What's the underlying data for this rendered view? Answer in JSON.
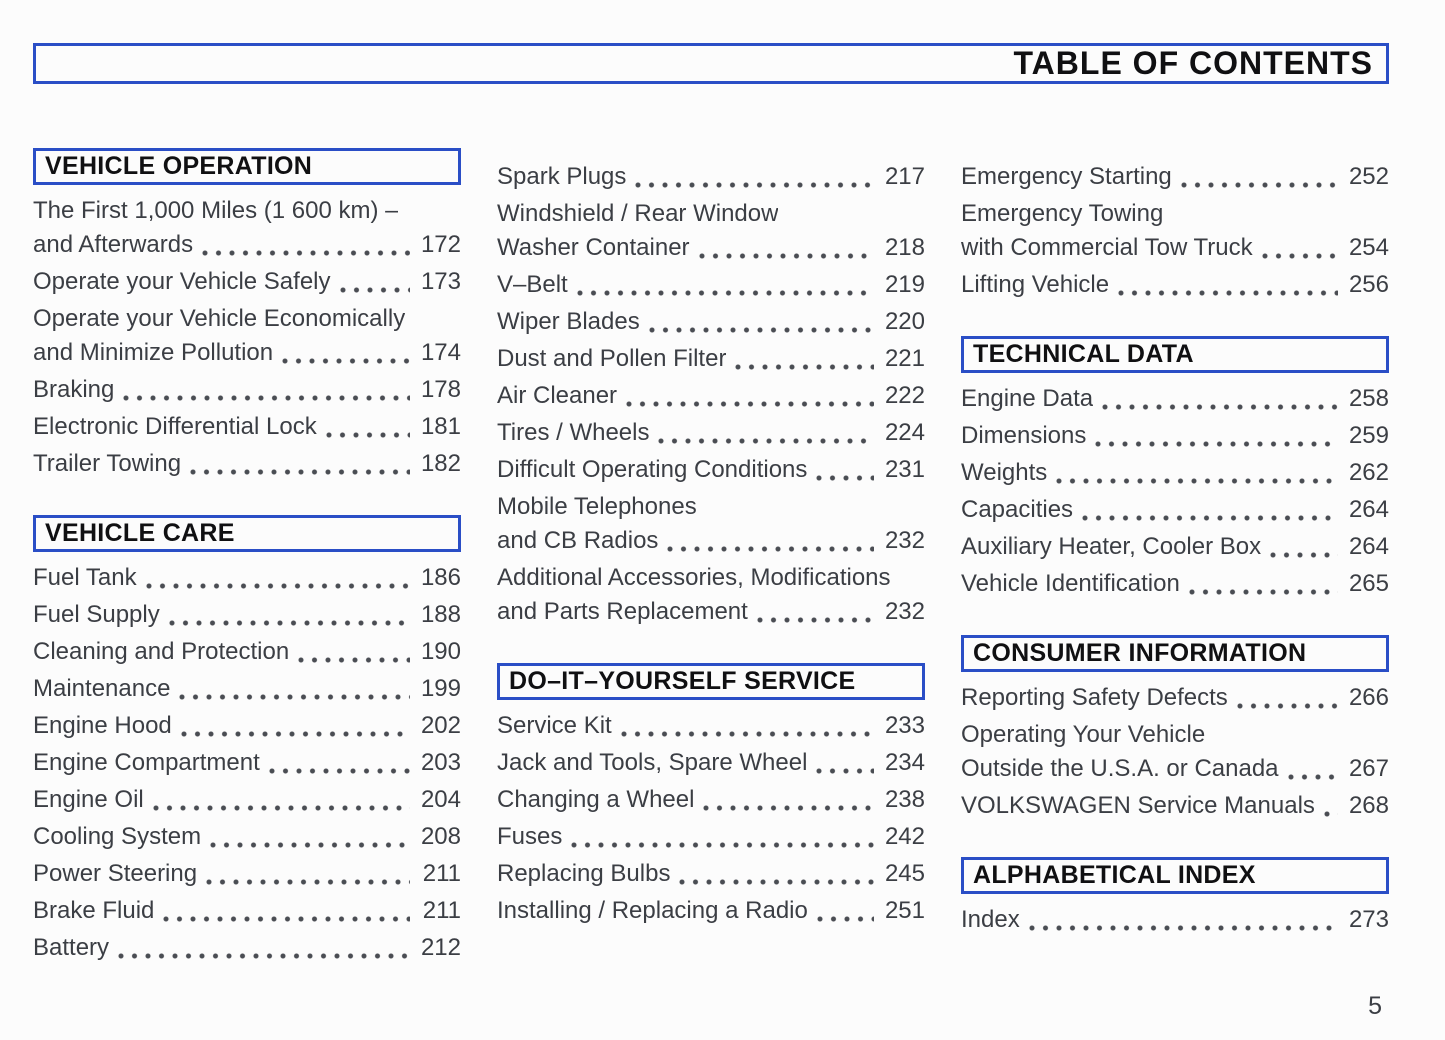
{
  "page": {
    "title": "TABLE OF CONTENTS",
    "number": "5"
  },
  "colors": {
    "box_border_blue": "#2a4ec6",
    "body_text": "#3b3e44",
    "header_text": "#101012"
  },
  "columns": [
    {
      "blocks": [
        {
          "header": "VEHICLE OPERATION",
          "entries": [
            {
              "lines": [
                "The First 1,000 Miles (1 600 km) –",
                "and Afterwards"
              ],
              "page": "172"
            },
            {
              "lines": [
                "Operate your Vehicle Safely"
              ],
              "page": "173"
            },
            {
              "lines": [
                "Operate your Vehicle Economically",
                "and Minimize Pollution"
              ],
              "page": "174"
            },
            {
              "lines": [
                "Braking"
              ],
              "page": "178"
            },
            {
              "lines": [
                "Electronic Differential Lock"
              ],
              "page": "181"
            },
            {
              "lines": [
                "Trailer Towing"
              ],
              "page": "182"
            }
          ]
        },
        {
          "header": "VEHICLE CARE",
          "entries": [
            {
              "lines": [
                "Fuel Tank"
              ],
              "page": "186"
            },
            {
              "lines": [
                "Fuel Supply"
              ],
              "page": "188"
            },
            {
              "lines": [
                "Cleaning and Protection"
              ],
              "page": "190"
            },
            {
              "lines": [
                "Maintenance"
              ],
              "page": "199"
            },
            {
              "lines": [
                "Engine Hood"
              ],
              "page": "202"
            },
            {
              "lines": [
                "Engine Compartment"
              ],
              "page": "203"
            },
            {
              "lines": [
                "Engine Oil"
              ],
              "page": "204"
            },
            {
              "lines": [
                "Cooling System"
              ],
              "page": "208"
            },
            {
              "lines": [
                "Power Steering"
              ],
              "page": "211"
            },
            {
              "lines": [
                "Brake Fluid"
              ],
              "page": "211"
            },
            {
              "lines": [
                "Battery"
              ],
              "page": "212"
            }
          ]
        }
      ]
    },
    {
      "blocks": [
        {
          "header": null,
          "entries": [
            {
              "lines": [
                "Spark Plugs"
              ],
              "page": "217"
            },
            {
              "lines": [
                "Windshield / Rear Window",
                "Washer Container"
              ],
              "page": "218"
            },
            {
              "lines": [
                "V–Belt"
              ],
              "page": "219"
            },
            {
              "lines": [
                "Wiper Blades"
              ],
              "page": "220"
            },
            {
              "lines": [
                "Dust and Pollen Filter"
              ],
              "page": "221"
            },
            {
              "lines": [
                "Air Cleaner"
              ],
              "page": "222"
            },
            {
              "lines": [
                "Tires / Wheels"
              ],
              "page": "224"
            },
            {
              "lines": [
                "Difficult Operating Conditions"
              ],
              "page": "231"
            },
            {
              "lines": [
                "Mobile Telephones",
                "and CB Radios"
              ],
              "page": "232"
            },
            {
              "lines": [
                "Additional Accessories, Modifications",
                "and Parts Replacement"
              ],
              "page": "232"
            }
          ]
        },
        {
          "header": "DO–IT–YOURSELF SERVICE",
          "entries": [
            {
              "lines": [
                "Service Kit"
              ],
              "page": "233"
            },
            {
              "lines": [
                "Jack and Tools, Spare Wheel"
              ],
              "page": "234"
            },
            {
              "lines": [
                "Changing a Wheel"
              ],
              "page": "238"
            },
            {
              "lines": [
                "Fuses"
              ],
              "page": "242"
            },
            {
              "lines": [
                "Replacing Bulbs"
              ],
              "page": "245"
            },
            {
              "lines": [
                "Installing / Replacing a Radio"
              ],
              "page": "251"
            }
          ]
        }
      ]
    },
    {
      "blocks": [
        {
          "header": null,
          "entries": [
            {
              "lines": [
                "Emergency Starting"
              ],
              "page": "252"
            },
            {
              "lines": [
                "Emergency Towing",
                "with Commercial Tow Truck"
              ],
              "page": "254"
            },
            {
              "lines": [
                "Lifting Vehicle"
              ],
              "page": "256"
            }
          ]
        },
        {
          "header": "TECHNICAL DATA",
          "entries": [
            {
              "lines": [
                "Engine Data"
              ],
              "page": "258"
            },
            {
              "lines": [
                "Dimensions"
              ],
              "page": "259"
            },
            {
              "lines": [
                "Weights"
              ],
              "page": "262"
            },
            {
              "lines": [
                "Capacities"
              ],
              "page": "264"
            },
            {
              "lines": [
                "Auxiliary Heater, Cooler Box"
              ],
              "page": "264"
            },
            {
              "lines": [
                "Vehicle Identification"
              ],
              "page": "265"
            }
          ]
        },
        {
          "header": "CONSUMER INFORMATION",
          "entries": [
            {
              "lines": [
                "Reporting Safety Defects"
              ],
              "page": "266"
            },
            {
              "lines": [
                "Operating Your Vehicle",
                "Outside the U.S.A. or Canada"
              ],
              "page": "267"
            },
            {
              "lines": [
                "VOLKSWAGEN Service Manuals"
              ],
              "page": "268"
            }
          ]
        },
        {
          "header": "ALPHABETICAL INDEX",
          "entries": [
            {
              "lines": [
                "Index"
              ],
              "page": "273"
            }
          ]
        }
      ]
    }
  ]
}
